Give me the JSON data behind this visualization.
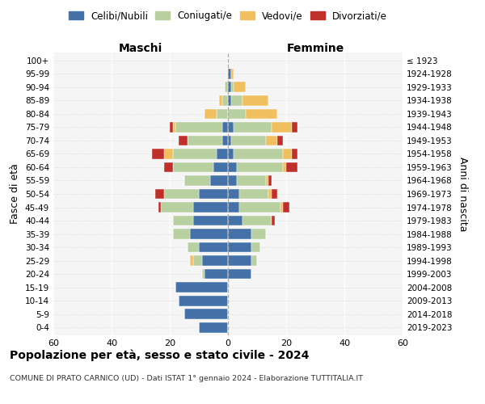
{
  "age_groups": [
    "0-4",
    "5-9",
    "10-14",
    "15-19",
    "20-24",
    "25-29",
    "30-34",
    "35-39",
    "40-44",
    "45-49",
    "50-54",
    "55-59",
    "60-64",
    "65-69",
    "70-74",
    "75-79",
    "80-84",
    "85-89",
    "90-94",
    "95-99",
    "100+"
  ],
  "birth_years": [
    "2019-2023",
    "2014-2018",
    "2009-2013",
    "2004-2008",
    "1999-2003",
    "1994-1998",
    "1989-1993",
    "1984-1988",
    "1979-1983",
    "1974-1978",
    "1969-1973",
    "1964-1968",
    "1959-1963",
    "1954-1958",
    "1949-1953",
    "1944-1948",
    "1939-1943",
    "1934-1938",
    "1929-1933",
    "1924-1928",
    "≤ 1923"
  ],
  "male": {
    "celibi": [
      10,
      15,
      17,
      18,
      8,
      9,
      10,
      13,
      12,
      12,
      10,
      6,
      5,
      4,
      2,
      2,
      0,
      0,
      0,
      0,
      0
    ],
    "coniugati": [
      0,
      0,
      0,
      0,
      1,
      3,
      4,
      6,
      7,
      11,
      12,
      9,
      14,
      15,
      12,
      16,
      4,
      2,
      1,
      0,
      0
    ],
    "vedovi": [
      0,
      0,
      0,
      0,
      0,
      1,
      0,
      0,
      0,
      0,
      0,
      0,
      0,
      3,
      0,
      1,
      4,
      1,
      0,
      0,
      0
    ],
    "divorziati": [
      0,
      0,
      0,
      0,
      0,
      0,
      0,
      0,
      0,
      1,
      3,
      0,
      3,
      4,
      3,
      1,
      0,
      0,
      0,
      0,
      0
    ]
  },
  "female": {
    "nubili": [
      0,
      0,
      0,
      0,
      8,
      8,
      8,
      8,
      5,
      4,
      4,
      3,
      3,
      2,
      1,
      2,
      0,
      1,
      1,
      1,
      0
    ],
    "coniugate": [
      0,
      0,
      0,
      0,
      0,
      2,
      3,
      5,
      10,
      14,
      10,
      10,
      16,
      17,
      12,
      13,
      6,
      4,
      1,
      0,
      0
    ],
    "vedove": [
      0,
      0,
      0,
      0,
      0,
      0,
      0,
      0,
      0,
      1,
      1,
      1,
      1,
      3,
      4,
      7,
      11,
      9,
      4,
      1,
      0
    ],
    "divorziate": [
      0,
      0,
      0,
      0,
      0,
      0,
      0,
      0,
      1,
      2,
      2,
      1,
      4,
      2,
      2,
      2,
      0,
      0,
      0,
      0,
      0
    ]
  },
  "colors": {
    "celibi": "#4472a8",
    "coniugati": "#b8cfa0",
    "vedovi": "#f0c060",
    "divorziati": "#c0302a"
  },
  "xlim": 60,
  "title": "Popolazione per età, sesso e stato civile - 2024",
  "subtitle": "COMUNE DI PRATO CARNICO (UD) - Dati ISTAT 1° gennaio 2024 - Elaborazione TUTTITALIA.IT",
  "ylabel_left": "Fasce di età",
  "ylabel_right": "Anni di nascita",
  "xlabel_left": "Maschi",
  "xlabel_right": "Femmine",
  "bg_color": "#f5f5f5",
  "grid_color": "#cccccc"
}
